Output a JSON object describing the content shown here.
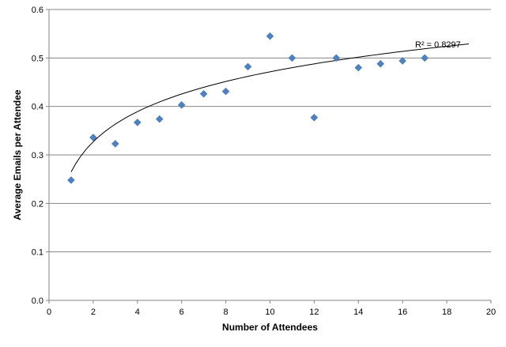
{
  "chart_data": {
    "type": "scatter",
    "title": "",
    "xlabel": "Number of Attendees",
    "ylabel": "Average Emails per Attendee",
    "xlim": [
      0,
      20
    ],
    "ylim": [
      0,
      0.6
    ],
    "xticks": [
      0,
      2,
      4,
      6,
      8,
      10,
      12,
      14,
      16,
      18,
      20
    ],
    "yticks": [
      0.0,
      0.1,
      0.2,
      0.3,
      0.4,
      0.5,
      0.6
    ],
    "xtick_labels": [
      "0",
      "2",
      "4",
      "6",
      "8",
      "10",
      "12",
      "14",
      "16",
      "18",
      "20"
    ],
    "ytick_labels": [
      "0.0",
      "0.1",
      "0.2",
      "0.3",
      "0.4",
      "0.5",
      "0.6"
    ],
    "grid": {
      "horizontal": true,
      "vertical": false
    },
    "legend": "none",
    "marker_color": "#4F81BD",
    "trendline_color": "#000000",
    "series": [
      {
        "points": [
          {
            "x": 1,
            "y": 0.248
          },
          {
            "x": 2,
            "y": 0.336
          },
          {
            "x": 3,
            "y": 0.323
          },
          {
            "x": 4,
            "y": 0.367
          },
          {
            "x": 5,
            "y": 0.374
          },
          {
            "x": 6,
            "y": 0.403
          },
          {
            "x": 7,
            "y": 0.426
          },
          {
            "x": 8,
            "y": 0.431
          },
          {
            "x": 9,
            "y": 0.482
          },
          {
            "x": 10,
            "y": 0.545
          },
          {
            "x": 11,
            "y": 0.5
          },
          {
            "x": 12,
            "y": 0.377
          },
          {
            "x": 13,
            "y": 0.5
          },
          {
            "x": 14,
            "y": 0.48
          },
          {
            "x": 15,
            "y": 0.488
          },
          {
            "x": 16,
            "y": 0.494
          },
          {
            "x": 17,
            "y": 0.5
          }
        ]
      }
    ],
    "trendline": {
      "type": "logarithmic",
      "x_start": 1,
      "x_end": 19,
      "y_start": 0.265,
      "y_end": 0.529,
      "label": "R² = 0.8297"
    }
  }
}
